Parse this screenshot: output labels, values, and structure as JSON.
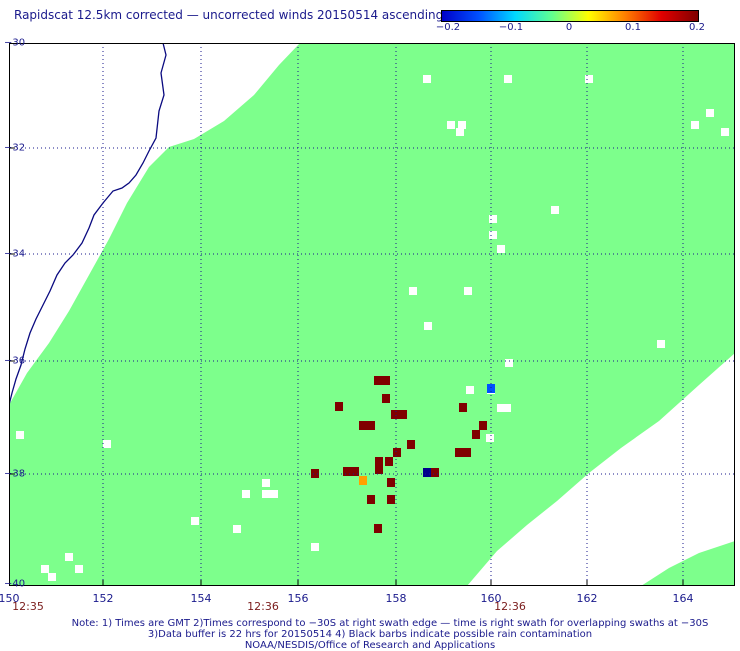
{
  "title": "Rapidscat 12.5km corrected — uncorrected winds 20150514 ascending",
  "colorbar": {
    "tick_labels": [
      "−0.2",
      "−0.1",
      "0",
      "0.1",
      "0.2"
    ],
    "colors": [
      "#0000c8",
      "#0050ff",
      "#00d8ff",
      "#60ff90",
      "#ffff00",
      "#ff8000",
      "#e00000",
      "#800000"
    ]
  },
  "map": {
    "lat_labels": [
      "−30",
      "−32",
      "−34",
      "−36",
      "−38",
      "−40"
    ],
    "lon_labels": [
      "150",
      "152",
      "154",
      "156",
      "158",
      "160",
      "162",
      "164"
    ],
    "lat_range": [
      -40,
      -30
    ],
    "lon_range": [
      150,
      165
    ],
    "swath_color": "#7dff8c",
    "coast_color": "#0a0a80",
    "grid": "dotted"
  },
  "time_labels": [
    {
      "text": "12:35",
      "lon": 150.3
    },
    {
      "text": "12:36",
      "lon": 155.0
    },
    {
      "text": "12:36",
      "lon": 160.4
    }
  ],
  "notes": [
    "Note: 1) Times are GMT 2)Times correspond to −30S at right swath edge — time is right swath for overlapping swaths at −30S",
    "3)Data buffer is 22 hrs for 20150514 4) Black barbs indicate possible rain contamination",
    "NOAA/NESDIS/Office of Research and Applications"
  ]
}
